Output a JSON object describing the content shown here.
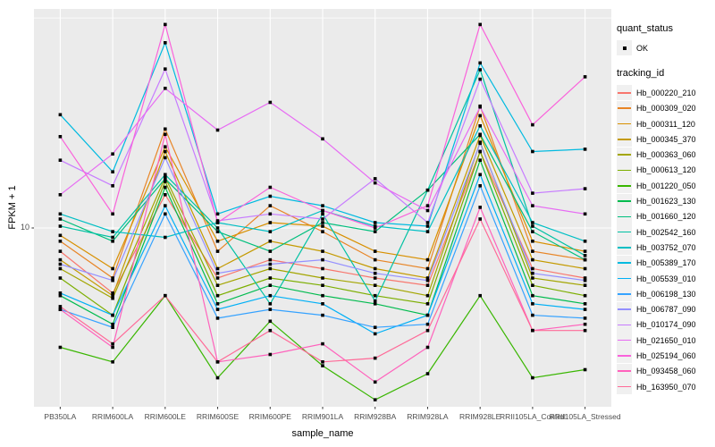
{
  "chart": {
    "y_axis_title": "FPKM + 1",
    "x_axis_title": "sample_name",
    "y_tick_label": "10"
  },
  "legend": {
    "quant_status_title": "quant_status",
    "quant_status_items": [
      {
        "label": "OK",
        "marker": "black-square-point"
      }
    ],
    "tracking_id_title": "tracking_id"
  },
  "colors": {
    "panel_background": "#EBEBEB",
    "gridline": "#FFFFFF",
    "legend_key_background": "#F0F0F0",
    "tick_label": "#4D4D4D",
    "point_marker": "#000000"
  },
  "chart_data": {
    "type": "line",
    "title": "",
    "xlabel": "sample_name",
    "ylabel": "FPKM + 1",
    "y_scale": "log10",
    "y_axis_breaks": {
      "major": [
        10
      ],
      "minor": [
        31.6
      ]
    },
    "y_range_approx": [
      3.5,
      33
    ],
    "grid": "on",
    "legend_position": "right",
    "quant_status_all_points": "OK",
    "categories": [
      "PB350LA",
      "RRIM600LA",
      "RRIM600LE",
      "RRIM600SE",
      "RRIM600PE",
      "RRIM901LA",
      "RRIM928BA",
      "RRIM928LA",
      "RRIM928LE",
      "RRII105LA_Control",
      "RRII105LA_Stressed"
    ],
    "series": [
      {
        "name": "Hb_000220_210",
        "color": "#F8766D",
        "values": [
          8.8,
          7.0,
          12.0,
          7.6,
          8.4,
          8.0,
          7.6,
          7.3,
          15.2,
          8.0,
          7.6
        ]
      },
      {
        "name": "Hb_000309_020",
        "color": "#E88526",
        "values": [
          9.3,
          7.6,
          17.2,
          8.8,
          11.3,
          9.8,
          8.4,
          8.0,
          19.5,
          8.8,
          8.4
        ]
      },
      {
        "name": "Hb_000311_120",
        "color": "#D89000",
        "values": [
          9.6,
          8.0,
          15.6,
          9.3,
          10.3,
          10.1,
          8.8,
          8.4,
          18.5,
          9.3,
          8.8
        ]
      },
      {
        "name": "Hb_000345_370",
        "color": "#C49A00",
        "values": [
          8.4,
          6.9,
          15.2,
          8.0,
          9.3,
          8.8,
          8.0,
          7.6,
          16.6,
          8.4,
          8.0
        ]
      },
      {
        "name": "Hb_000363_060",
        "color": "#A3A500",
        "values": [
          8.0,
          6.8,
          13.2,
          7.3,
          8.0,
          7.6,
          7.3,
          6.9,
          16.0,
          7.6,
          7.3
        ]
      },
      {
        "name": "Hb_000613_120",
        "color": "#7CAE00",
        "values": [
          7.6,
          6.2,
          12.9,
          6.9,
          7.6,
          7.3,
          6.9,
          6.6,
          15.2,
          7.3,
          6.9
        ]
      },
      {
        "name": "Hb_001220_050",
        "color": "#39B600",
        "values": [
          5.2,
          4.8,
          6.9,
          4.4,
          6.0,
          4.7,
          3.9,
          4.5,
          6.9,
          4.4,
          4.6
        ]
      },
      {
        "name": "Hb_001623_130",
        "color": "#00BB4E",
        "values": [
          6.9,
          5.9,
          12.5,
          6.6,
          7.3,
          6.9,
          6.6,
          6.2,
          14.5,
          6.9,
          6.6
        ]
      },
      {
        "name": "Hb_001660_120",
        "color": "#00BF7D",
        "values": [
          10.5,
          9.3,
          13.1,
          9.8,
          8.8,
          10.3,
          9.8,
          12.3,
          16.7,
          9.8,
          8.4
        ]
      },
      {
        "name": "Hb_002542_160",
        "color": "#00C1A3",
        "values": [
          10.1,
          9.5,
          13.4,
          10.0,
          6.6,
          10.8,
          6.7,
          12.3,
          23.8,
          10.1,
          8.6
        ]
      },
      {
        "name": "Hb_003752_070",
        "color": "#00BFC4",
        "values": [
          10.8,
          9.8,
          9.5,
          10.3,
          9.8,
          11.0,
          10.1,
          9.8,
          17.5,
          10.3,
          9.3
        ]
      },
      {
        "name": "Hb_005389_170",
        "color": "#00BAE0",
        "values": [
          18.6,
          13.6,
          27.6,
          10.8,
          11.9,
          11.3,
          10.3,
          10.1,
          24.7,
          15.2,
          15.4
        ]
      },
      {
        "name": "Hb_005539_010",
        "color": "#00B0F6",
        "values": [
          7.0,
          6.2,
          11.3,
          6.4,
          6.9,
          6.6,
          5.6,
          6.2,
          13.4,
          6.6,
          6.4
        ]
      },
      {
        "name": "Hb_006198_130",
        "color": "#35A2FF",
        "values": [
          6.4,
          5.8,
          10.8,
          6.1,
          6.4,
          6.2,
          5.8,
          5.9,
          12.6,
          6.2,
          6.1
        ]
      },
      {
        "name": "Hb_006787_090",
        "color": "#9590FF",
        "values": [
          8.2,
          7.5,
          14.7,
          7.8,
          8.2,
          8.4,
          7.8,
          7.5,
          15.9,
          7.8,
          7.5
        ]
      },
      {
        "name": "Hb_010174_090",
        "color": "#C77CFF",
        "values": [
          14.5,
          12.6,
          23.9,
          10.4,
          10.8,
          10.5,
          13.1,
          10.3,
          22.6,
          12.1,
          12.4
        ]
      },
      {
        "name": "Hb_021650_010",
        "color": "#E76BF3",
        "values": [
          12.0,
          15.0,
          21.5,
          17.1,
          19.9,
          16.3,
          12.8,
          11.0,
          19.4,
          11.3,
          10.8
        ]
      },
      {
        "name": "Hb_025194_060",
        "color": "#FA62DB",
        "values": [
          16.5,
          10.8,
          30.5,
          10.3,
          12.5,
          11.0,
          10.0,
          11.3,
          30.5,
          17.6,
          22.9
        ]
      },
      {
        "name": "Hb_093458_060",
        "color": "#FF62BC",
        "values": [
          6.4,
          5.2,
          16.7,
          4.8,
          5.0,
          5.3,
          4.3,
          5.2,
          11.2,
          5.7,
          5.9
        ]
      },
      {
        "name": "Hb_163950_070",
        "color": "#FF6A98",
        "values": [
          6.5,
          5.3,
          6.9,
          4.8,
          5.7,
          4.8,
          4.9,
          5.7,
          10.5,
          5.7,
          5.7
        ]
      }
    ]
  }
}
